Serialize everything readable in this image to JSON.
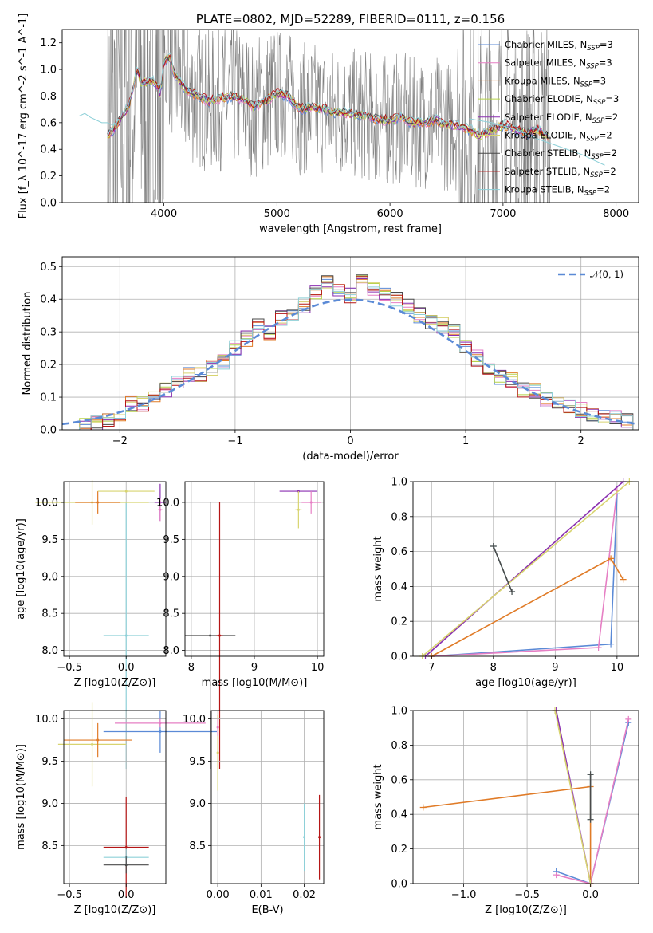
{
  "colors": {
    "chabrier_miles": "#5b8ad6",
    "salpeter_miles": "#e67fc4",
    "kroupa_miles": "#e07b27",
    "chabrier_elodie": "#b5d24a",
    "salpeter_elodie": "#8a2fb0",
    "kroupa_elodie": "#d8d470",
    "chabrier_stelib": "#4a4a4a",
    "salpeter_stelib": "#b51515",
    "kroupa_stelib": "#8ed0d8",
    "data": "#808080",
    "normal": "#5b8ad6",
    "grid": "#b0b0b0"
  },
  "chart_data": [
    {
      "type": "line",
      "title": "PLATE=0802, MJD=52289, FIBERID=0111, z=0.156",
      "xlabel": "wavelength [Angstrom, rest frame]",
      "ylabel": "Flux [f_λ 10^-17 erg cm^-2 s^-1 A^-1]",
      "xlim": [
        3100,
        8200
      ],
      "ylim": [
        0,
        1.3
      ],
      "xticks": [
        "4000",
        "5000",
        "6000",
        "7000",
        "8000"
      ],
      "yticks": [
        "0.0",
        "0.2",
        "0.4",
        "0.6",
        "0.8",
        "1.0",
        "1.2"
      ],
      "legend_position": "top-right",
      "legend": [
        "Chabrier MILES, N_SSP=3",
        "Salpeter MILES, N_SSP=3",
        "Kroupa MILES, N_SSP=3",
        "Chabrier ELODIE, N_SSP=3",
        "Salpeter ELODIE, N_SSP=2",
        "Kroupa ELODIE, N_SSP=2",
        "Chabrier STELIB, N_SSP=2",
        "Salpeter STELIB, N_SSP=2",
        "Kroupa STELIB, N_SSP=2"
      ],
      "model_curve": {
        "x": [
          3500,
          3600,
          3700,
          3760,
          3800,
          3900,
          3970,
          4000,
          4050,
          4100,
          4200,
          4300,
          4400,
          4500,
          4600,
          4700,
          4800,
          4900,
          5000,
          5100,
          5200,
          5300,
          5400,
          5500,
          5600,
          5700,
          5800,
          5900,
          6000,
          6100,
          6200,
          6300,
          6400,
          6500,
          6600,
          6700,
          6800,
          6900,
          7000,
          7100,
          7200,
          7300,
          7400
        ],
        "y": [
          0.5,
          0.6,
          0.75,
          1.0,
          0.9,
          0.92,
          0.82,
          1.05,
          1.1,
          0.95,
          0.85,
          0.8,
          0.76,
          0.78,
          0.8,
          0.78,
          0.72,
          0.76,
          0.82,
          0.8,
          0.7,
          0.72,
          0.7,
          0.68,
          0.68,
          0.66,
          0.65,
          0.62,
          0.62,
          0.64,
          0.6,
          0.6,
          0.62,
          0.58,
          0.58,
          0.55,
          0.5,
          0.55,
          0.58,
          0.56,
          0.52,
          0.55,
          0.5
        ]
      },
      "stelib_extension": {
        "x": [
          3250,
          3300,
          3350,
          3400,
          3450,
          3500,
          3550,
          3600
        ],
        "y": [
          0.65,
          0.67,
          0.64,
          0.62,
          0.6,
          0.6,
          0.58,
          0.62
        ],
        "x_red": [
          6700,
          6900,
          7100,
          7300,
          7500,
          7700,
          7900
        ],
        "y_red": [
          0.63,
          0.6,
          0.55,
          0.48,
          0.42,
          0.36,
          0.28
        ]
      },
      "data_range": [
        3500,
        7420
      ]
    },
    {
      "type": "bar",
      "title": "",
      "xlabel": "(data-model)/error",
      "ylabel": "Normed distribution",
      "xlim": [
        -2.5,
        2.5
      ],
      "ylim": [
        0,
        0.53
      ],
      "xticks": [
        "−2",
        "−1",
        "0",
        "1",
        "2"
      ],
      "yticks": [
        "0.0",
        "0.1",
        "0.2",
        "0.3",
        "0.4",
        "0.5"
      ],
      "legend": [
        "𝒩(0, 1)"
      ],
      "legend_position": "top-right",
      "bin_width": 0.1,
      "x": [
        -2.3,
        -2.2,
        -2.1,
        -2.0,
        -1.9,
        -1.8,
        -1.7,
        -1.6,
        -1.5,
        -1.4,
        -1.3,
        -1.2,
        -1.1,
        -1.0,
        -0.9,
        -0.8,
        -0.7,
        -0.6,
        -0.5,
        -0.4,
        -0.3,
        -0.2,
        -0.1,
        0.0,
        0.1,
        0.2,
        0.3,
        0.4,
        0.5,
        0.6,
        0.7,
        0.8,
        0.9,
        1.0,
        1.1,
        1.2,
        1.3,
        1.4,
        1.5,
        1.6,
        1.7,
        1.8,
        1.9,
        2.0,
        2.1,
        2.2,
        2.3,
        2.4
      ],
      "values": [
        0.01,
        0.02,
        0.03,
        0.05,
        0.08,
        0.08,
        0.1,
        0.12,
        0.15,
        0.17,
        0.17,
        0.19,
        0.21,
        0.25,
        0.28,
        0.32,
        0.3,
        0.34,
        0.35,
        0.38,
        0.42,
        0.45,
        0.43,
        0.41,
        0.46,
        0.43,
        0.42,
        0.4,
        0.38,
        0.35,
        0.33,
        0.32,
        0.3,
        0.26,
        0.22,
        0.18,
        0.16,
        0.15,
        0.12,
        0.12,
        0.09,
        0.08,
        0.07,
        0.06,
        0.05,
        0.04,
        0.04,
        0.03
      ]
    },
    {
      "type": "scatter",
      "title": "",
      "xlabel": "Z [log10(Z/Z⊙)]",
      "ylabel": "age  [log10(age/yr)]",
      "xlim": [
        -0.55,
        0.35
      ],
      "ylim": [
        7.92,
        10.28
      ],
      "xticks": [
        "−0.5",
        "0.0"
      ],
      "yticks": [
        "8.0",
        "8.5",
        "9.0",
        "9.5",
        "10.0"
      ],
      "points": [
        {
          "x": 0.0,
          "y": 8.2,
          "xerr": 0.2,
          "yerr": 1.8,
          "series": "kroupa_stelib"
        },
        {
          "x": -0.3,
          "y": 10.0,
          "xerr": 0.5,
          "yerr": 0.3,
          "series": "kroupa_elodie"
        },
        {
          "x": -0.25,
          "y": 10.0,
          "xerr": 0.2,
          "yerr": 0.15,
          "series": "kroupa_miles"
        },
        {
          "x": 0.3,
          "y": 10.0,
          "xerr": 0.05,
          "yerr": 0.25,
          "series": "salpeter_elodie"
        },
        {
          "x": 0.0,
          "y": 10.15,
          "xerr": 0.25,
          "yerr": 0.0,
          "series": "kroupa_elodie"
        },
        {
          "x": 0.3,
          "y": 9.9,
          "xerr": 0.02,
          "yerr": 0.15,
          "series": "salpeter_miles"
        }
      ]
    },
    {
      "type": "scatter",
      "title": "",
      "xlabel": "mass [log10(M/M⊙)]",
      "ylabel": "",
      "xlim": [
        7.9,
        10.1
      ],
      "ylim": [
        7.92,
        10.28
      ],
      "xticks": [
        "8",
        "9",
        "10"
      ],
      "yticks": [
        "8.0",
        "8.5",
        "9.0",
        "9.5",
        "10.0"
      ],
      "points": [
        {
          "x": 8.3,
          "y": 8.2,
          "xerr": 0.4,
          "yerr": 1.8,
          "series": "chabrier_stelib"
        },
        {
          "x": 8.45,
          "y": 8.2,
          "xerr": 0.05,
          "yerr": 1.8,
          "series": "salpeter_stelib"
        },
        {
          "x": 9.7,
          "y": 10.15,
          "xerr": 0.3,
          "yerr": 0.0,
          "series": "salpeter_elodie"
        },
        {
          "x": 9.9,
          "y": 10.0,
          "xerr": 0.15,
          "yerr": 0.15,
          "series": "salpeter_miles"
        },
        {
          "x": 9.7,
          "y": 9.9,
          "xerr": 0.05,
          "yerr": 0.25,
          "series": "kroupa_elodie"
        }
      ]
    },
    {
      "type": "line",
      "title": "",
      "xlabel": "age  [log10(age/yr)]",
      "ylabel": "mass weight",
      "xlim": [
        6.7,
        10.35
      ],
      "ylim": [
        0,
        1.0
      ],
      "xticks": [
        "7",
        "8",
        "9",
        "10"
      ],
      "yticks": [
        "0.0",
        "0.2",
        "0.4",
        "0.6",
        "0.8",
        "1.0"
      ],
      "series": [
        {
          "key": "chabrier_miles",
          "x": [
            7.0,
            9.9,
            10.0
          ],
          "y": [
            0.0,
            0.07,
            0.93
          ]
        },
        {
          "key": "salpeter_miles",
          "x": [
            7.0,
            9.7,
            10.0
          ],
          "y": [
            0.0,
            0.05,
            0.95
          ]
        },
        {
          "key": "kroupa_miles",
          "x": [
            7.0,
            9.9,
            10.1
          ],
          "y": [
            0.0,
            0.56,
            0.44
          ]
        },
        {
          "key": "salpeter_elodie",
          "x": [
            6.9,
            10.1
          ],
          "y": [
            0.0,
            1.0
          ]
        },
        {
          "key": "kroupa_elodie",
          "x": [
            6.85,
            10.2
          ],
          "y": [
            0.0,
            1.0
          ]
        },
        {
          "key": "kroupa_stelib",
          "x": [
            8.0,
            8.3
          ],
          "y": [
            0.63,
            0.37
          ]
        },
        {
          "key": "chabrier_stelib",
          "x": [
            8.0,
            8.3
          ],
          "y": [
            0.63,
            0.37
          ]
        }
      ]
    },
    {
      "type": "scatter",
      "title": "",
      "xlabel": "Z [log10(Z/Z⊙)]",
      "ylabel": "mass [log10(M/M⊙)]",
      "xlim": [
        -0.55,
        0.35
      ],
      "ylim": [
        8.05,
        10.1
      ],
      "xticks": [
        "−0.5",
        "0.0"
      ],
      "yticks": [
        "8.5",
        "9.0",
        "9.5",
        "10.0"
      ],
      "points": [
        {
          "x": 0.0,
          "y": 8.48,
          "xerr": 0.2,
          "yerr": 0.6,
          "series": "salpeter_stelib"
        },
        {
          "x": 0.0,
          "y": 8.36,
          "xerr": 0.2,
          "yerr": 0.1,
          "series": "kroupa_stelib"
        },
        {
          "x": 0.0,
          "y": 8.27,
          "xerr": 0.2,
          "yerr": 0.1,
          "series": "chabrier_stelib"
        },
        {
          "x": -0.3,
          "y": 9.7,
          "xerr": 0.3,
          "yerr": 0.5,
          "series": "kroupa_elodie"
        },
        {
          "x": -0.25,
          "y": 9.75,
          "xerr": 0.3,
          "yerr": 0.2,
          "series": "kroupa_miles"
        },
        {
          "x": 0.3,
          "y": 9.85,
          "xerr": 0.5,
          "yerr": 0.25,
          "series": "chabrier_miles"
        },
        {
          "x": 0.3,
          "y": 9.95,
          "xerr": 0.4,
          "yerr": 0.05,
          "series": "salpeter_miles"
        }
      ]
    },
    {
      "type": "scatter",
      "title": "",
      "xlabel": "E(B-V)",
      "ylabel": "",
      "xlim": [
        -0.0015,
        0.0245
      ],
      "ylim": [
        8.05,
        10.1
      ],
      "xticks": [
        "0.00",
        "0.01",
        "0.02"
      ],
      "yticks": [
        "8.5",
        "9.0",
        "9.5",
        "10.0"
      ],
      "points": [
        {
          "x": 0.0,
          "y": 9.6,
          "xerr": 0.0,
          "yerr": 0.45,
          "series": "kroupa_elodie"
        },
        {
          "x": 0.0,
          "y": 9.9,
          "xerr": 0.0,
          "yerr": 0.1,
          "series": "salpeter_miles"
        },
        {
          "x": 0.02,
          "y": 8.6,
          "xerr": 0.0,
          "yerr": 0.4,
          "series": "kroupa_stelib"
        },
        {
          "x": 0.0235,
          "y": 8.6,
          "xerr": 0.0,
          "yerr": 0.5,
          "series": "salpeter_stelib"
        }
      ]
    },
    {
      "type": "line",
      "title": "",
      "xlabel": "Z [log10(Z/Z⊙)]",
      "ylabel": "mass weight",
      "xlim": [
        -1.4,
        0.38
      ],
      "ylim": [
        0,
        1.0
      ],
      "xticks": [
        "−1.0",
        "−0.5",
        "0.0"
      ],
      "yticks": [
        "0.0",
        "0.2",
        "0.4",
        "0.6",
        "0.8",
        "1.0"
      ],
      "series": [
        {
          "key": "chabrier_miles",
          "x": [
            -0.27,
            0.0,
            0.3
          ],
          "y": [
            0.07,
            0.0,
            0.93
          ]
        },
        {
          "key": "salpeter_miles",
          "x": [
            -0.27,
            0.0,
            0.3
          ],
          "y": [
            0.05,
            0.0,
            0.95
          ]
        },
        {
          "key": "kroupa_miles",
          "x": [
            -1.32,
            0.0,
            0.0
          ],
          "y": [
            0.44,
            0.56,
            0.0
          ]
        },
        {
          "key": "salpeter_elodie",
          "x": [
            -0.27,
            0.0
          ],
          "y": [
            1.0,
            0.0
          ]
        },
        {
          "key": "kroupa_elodie",
          "x": [
            -0.28,
            0.0
          ],
          "y": [
            1.0,
            0.0
          ]
        },
        {
          "key": "kroupa_stelib",
          "x": [
            0.0,
            0.0
          ],
          "y": [
            0.63,
            0.37
          ]
        },
        {
          "key": "chabrier_stelib",
          "x": [
            0.0,
            0.0
          ],
          "y": [
            0.63,
            0.37
          ]
        }
      ]
    }
  ]
}
